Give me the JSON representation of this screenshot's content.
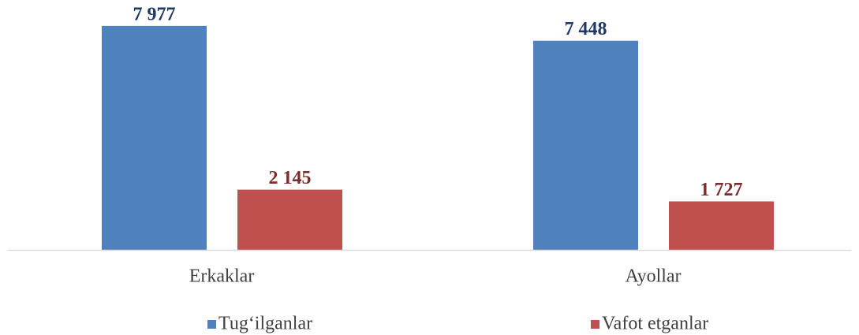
{
  "chart_data": {
    "type": "bar",
    "categories": [
      "Erkaklar",
      "Ayollar"
    ],
    "series": [
      {
        "name": "Tug‘ilganlar",
        "color": "#4f81bd",
        "label_color": "#1f3864",
        "values": [
          7977,
          7448
        ],
        "value_labels": [
          "7 977",
          "7 448"
        ]
      },
      {
        "name": "Vafot etganlar",
        "color": "#c0504d",
        "label_color": "#7b2c2c",
        "values": [
          2145,
          1727
        ],
        "value_labels": [
          "2 145",
          "1 727"
        ]
      }
    ],
    "ylim": [
      0,
      8900
    ],
    "legend": "bottom"
  }
}
